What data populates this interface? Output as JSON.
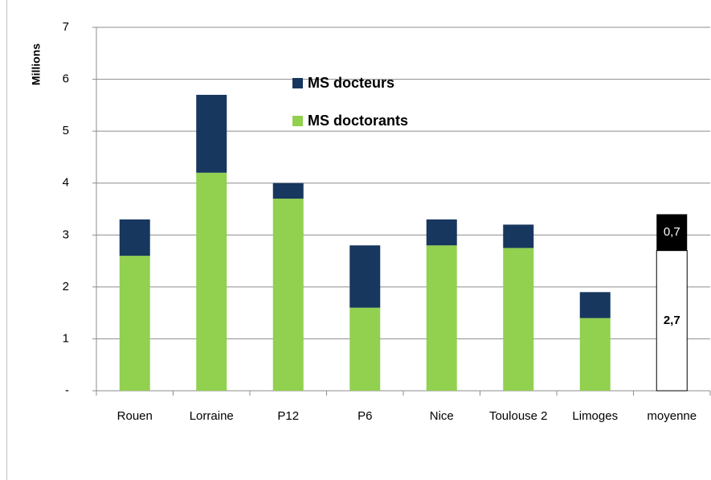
{
  "chart_data": {
    "type": "stacked_bar",
    "y_axis_label": "Millions",
    "categories": [
      "Rouen",
      "Lorraine",
      "P12",
      "P6",
      "Nice",
      "Toulouse 2",
      "Limoges",
      "moyenne"
    ],
    "series": [
      {
        "name": "MS doctorants",
        "color": "#92d050",
        "point_colors": [
          "#92d050",
          "#92d050",
          "#92d050",
          "#92d050",
          "#92d050",
          "#92d050",
          "#92d050",
          "#ffffff"
        ],
        "values": [
          2.6,
          4.2,
          3.7,
          1.6,
          2.8,
          2.75,
          1.4,
          2.7
        ],
        "value_labels": [
          null,
          null,
          null,
          null,
          null,
          null,
          null,
          "2,7"
        ]
      },
      {
        "name": "MS docteurs",
        "color": "#17375e",
        "point_colors": [
          "#17375e",
          "#17375e",
          "#17375e",
          "#17375e",
          "#17375e",
          "#17375e",
          "#17375e",
          "#000000"
        ],
        "values": [
          0.7,
          1.5,
          0.3,
          1.2,
          0.5,
          0.45,
          0.5,
          0.7
        ],
        "value_labels": [
          null,
          null,
          null,
          null,
          null,
          null,
          null,
          "0,7"
        ]
      }
    ],
    "ylim": [
      0,
      7
    ],
    "yticks": [
      {
        "value": 0,
        "label": "-"
      },
      1,
      2,
      3,
      4,
      5,
      6,
      7
    ],
    "grid": true
  }
}
